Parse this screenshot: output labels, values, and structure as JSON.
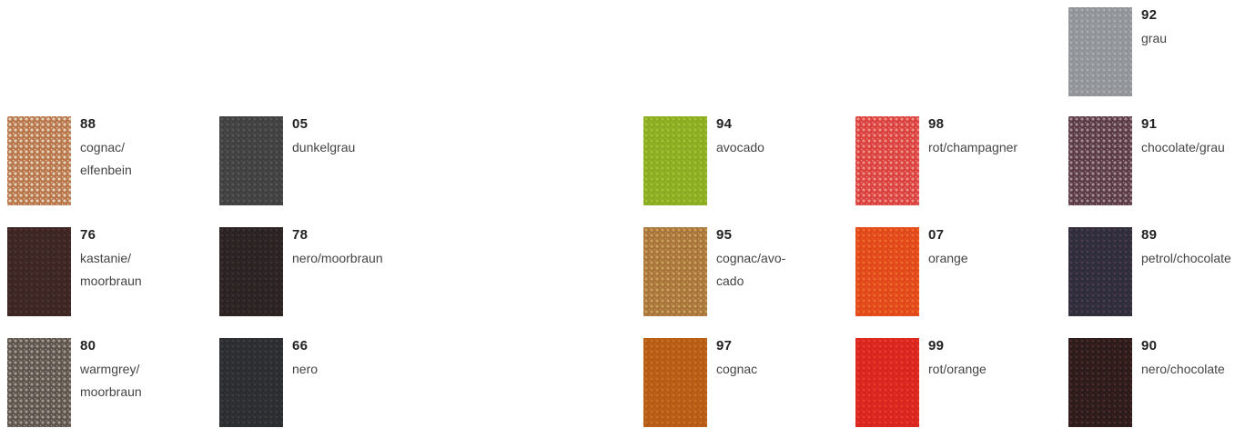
{
  "swatches": [
    {
      "code": "92",
      "name": "grau",
      "color": "#8f9296",
      "light": "#a9acb0"
    },
    {
      "code": "88",
      "name": "cognac/\nelfenbein",
      "color": "#b8764a",
      "light": "#e6d3bd"
    },
    {
      "code": "05",
      "name": "dunkelgrau",
      "color": "#3f3f3f",
      "light": "#555555"
    },
    {
      "code": "94",
      "name": "avocado",
      "color": "#8aaa22",
      "light": "#a3c231"
    },
    {
      "code": "98",
      "name": "rot/champagner",
      "color": "#d9403e",
      "light": "#f08f86"
    },
    {
      "code": "91",
      "name": "chocolate/grau",
      "color": "#5a3a45",
      "light": "#a38e96"
    },
    {
      "code": "76",
      "name": "kastanie/\nmoorbraun",
      "color": "#3b2522",
      "light": "#4c3330"
    },
    {
      "code": "78",
      "name": "nero/moorbraun",
      "color": "#2a2222",
      "light": "#3a3030"
    },
    {
      "code": "95",
      "name": "cognac/avo-\ncado",
      "color": "#a8733a",
      "light": "#c9a05a"
    },
    {
      "code": "07",
      "name": "orange",
      "color": "#e0461a",
      "light": "#ee6a2a"
    },
    {
      "code": "89",
      "name": "petrol/chocolate",
      "color": "#2c2c3a",
      "light": "#4a3c4c"
    },
    {
      "code": "80",
      "name": "warmgrey/\nmoorbraun",
      "color": "#5e544e",
      "light": "#a39a90"
    },
    {
      "code": "66",
      "name": "nero",
      "color": "#2a2c30",
      "light": "#3a3c40"
    },
    {
      "code": "97",
      "name": "cognac",
      "color": "#b55a14",
      "light": "#c96e22"
    },
    {
      "code": "99",
      "name": "rot/orange",
      "color": "#d8241e",
      "light": "#ea3a2a"
    },
    {
      "code": "90",
      "name": "nero/chocolate",
      "color": "#2a1a1a",
      "light": "#4a2a2a"
    }
  ]
}
